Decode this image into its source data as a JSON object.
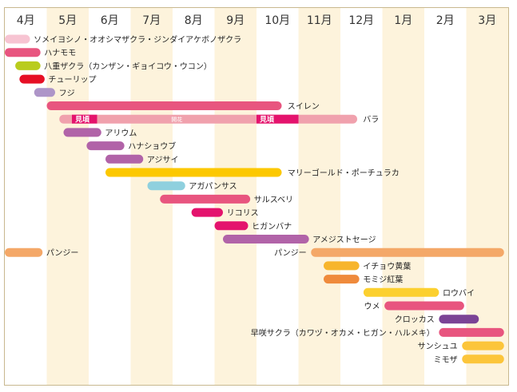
{
  "chart_data": {
    "type": "bar",
    "months": [
      "4月",
      "5月",
      "6月",
      "7月",
      "8月",
      "9月",
      "10月",
      "11月",
      "12月",
      "1月",
      "2月",
      "3月"
    ],
    "x_unit": "month (April → March)",
    "series": [
      {
        "label": "ソメイヨシノ・オオシマザクラ・ジンダイアケボノザクラ",
        "bars": [
          [
            0.0,
            0.6
          ]
        ],
        "color": "#f7c4d2",
        "label_side": "right",
        "label_at": 0.65
      },
      {
        "label": "ハナモモ",
        "bars": [
          [
            0.0,
            0.85
          ]
        ],
        "color": "#e8557f",
        "label_side": "right",
        "label_at": 0.9
      },
      {
        "label": "八重ザクラ（カンザン・ギョイコウ・ウコン）",
        "bars": [
          [
            0.25,
            0.85
          ]
        ],
        "color": "#b9cc1e",
        "label_side": "right",
        "label_at": 0.9
      },
      {
        "label": "チューリップ",
        "bars": [
          [
            0.35,
            0.95
          ]
        ],
        "color": "#e60f25",
        "label_side": "right",
        "label_at": 1.0
      },
      {
        "label": "フジ",
        "bars": [
          [
            0.7,
            1.2
          ]
        ],
        "color": "#ae95c8",
        "label_side": "right",
        "label_at": 1.25
      },
      {
        "label": "スイレン",
        "bars": [
          [
            1.0,
            6.6
          ]
        ],
        "color": "#e8557f",
        "label_side": "right",
        "label_at": 6.7
      },
      {
        "label": "バラ",
        "bars": [
          [
            1.3,
            8.4
          ]
        ],
        "color": "#f0a1ad",
        "label_side": "right",
        "label_at": 8.5,
        "highlights": [
          [
            1.6,
            2.2,
            "見頃"
          ],
          [
            6.0,
            7.0,
            "見頃"
          ]
        ],
        "mid_note": "開花"
      },
      {
        "label": "アリウム",
        "bars": [
          [
            1.4,
            2.3
          ]
        ],
        "color": "#b163a8",
        "label_side": "right",
        "label_at": 2.35
      },
      {
        "label": "ハナショウブ",
        "bars": [
          [
            1.95,
            2.85
          ]
        ],
        "color": "#b163a8",
        "label_side": "right",
        "label_at": 2.9
      },
      {
        "label": "アジサイ",
        "bars": [
          [
            2.4,
            3.3
          ]
        ],
        "color": "#b163a8",
        "label_side": "right",
        "label_at": 3.35
      },
      {
        "label": "マリーゴールド・ポーチュラカ",
        "bars": [
          [
            2.4,
            6.6
          ]
        ],
        "color": "#fcc800",
        "label_side": "right",
        "label_at": 6.7
      },
      {
        "label": "アガパンサス",
        "bars": [
          [
            3.4,
            4.3
          ]
        ],
        "color": "#8fd0de",
        "label_side": "right",
        "label_at": 4.35
      },
      {
        "label": "サルスベリ",
        "bars": [
          [
            3.7,
            5.85
          ]
        ],
        "color": "#e8557f",
        "label_side": "right",
        "label_at": 5.9
      },
      {
        "label": "リコリス",
        "bars": [
          [
            4.45,
            5.2
          ]
        ],
        "color": "#e4136d",
        "label_side": "right",
        "label_at": 5.25
      },
      {
        "label": "ヒガンバナ",
        "bars": [
          [
            5.0,
            5.8
          ]
        ],
        "color": "#e4136d",
        "label_side": "right",
        "label_at": 5.85
      },
      {
        "label": "アメジストセージ",
        "bars": [
          [
            5.2,
            7.25
          ]
        ],
        "color": "#b163a8",
        "label_side": "right",
        "label_at": 7.3
      },
      {
        "label": "パンジー",
        "bars": [
          [
            0.0,
            0.9
          ],
          [
            7.3,
            11.9
          ]
        ],
        "color": "#f4a868",
        "labels": [
          [
            "パンジー",
            0.95,
            "right"
          ],
          [
            "パンジー",
            7.25,
            "left"
          ]
        ]
      },
      {
        "label": "イチョウ黄葉",
        "bars": [
          [
            7.6,
            8.45
          ]
        ],
        "color": "#f7b52c",
        "label_side": "right",
        "label_at": 8.5
      },
      {
        "label": "モミジ紅葉",
        "bars": [
          [
            7.6,
            8.45
          ]
        ],
        "color": "#ef8a3c",
        "label_side": "right",
        "label_at": 8.5
      },
      {
        "label": "ロウバイ",
        "bars": [
          [
            8.55,
            10.35
          ]
        ],
        "color": "#fcd02f",
        "label_side": "right",
        "label_at": 10.4
      },
      {
        "label": "ウメ",
        "bars": [
          [
            9.05,
            10.95
          ]
        ],
        "color": "#e8557f",
        "label_side": "left",
        "label_at": 9.0
      },
      {
        "label": "クロッカス",
        "bars": [
          [
            10.35,
            11.3
          ]
        ],
        "color": "#7b4396",
        "label_side": "left",
        "label_at": 10.3
      },
      {
        "label": "早咲サクラ（カワヅ・オカメ・ヒガン・ハルメキ）",
        "bars": [
          [
            10.35,
            11.9
          ]
        ],
        "color": "#e8557f",
        "label_side": "left",
        "label_at": 10.3
      },
      {
        "label": "サンシュユ",
        "bars": [
          [
            10.9,
            11.9
          ]
        ],
        "color": "#fcc53a",
        "label_side": "left",
        "label_at": 10.85
      },
      {
        "label": "ミモザ",
        "bars": [
          [
            10.9,
            11.9
          ]
        ],
        "color": "#fcc53a",
        "label_side": "left",
        "label_at": 10.85
      }
    ],
    "colors": {
      "band": "#fdf3dc",
      "frame": "#c8b88f"
    }
  }
}
